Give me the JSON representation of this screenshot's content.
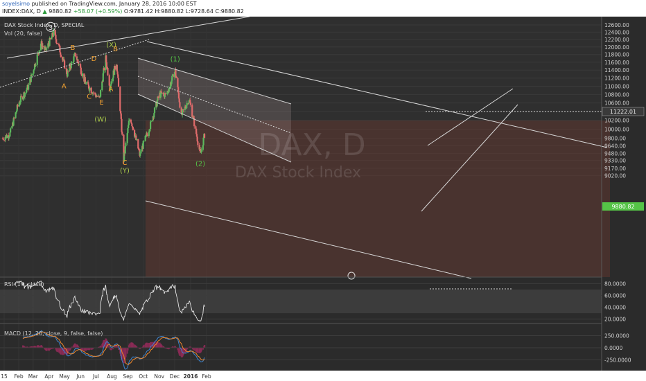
{
  "header": {
    "author": "soyelsimo",
    "published": "published on TradingView.com, January 28, 2016 10:00 EST",
    "symbol": "INDEX:DAX, D",
    "last": "9880.82",
    "change": "+58.07 (+0.59%)",
    "ohlc": "O:9781.42 H:9880.82 L:9728.64 C:9880.82"
  },
  "chart_data": {
    "type": "candlestick",
    "title": "DAX Stock Index, D, SPECIAL",
    "watermark_symbol": "DAX, D",
    "watermark_name": "DAX Stock Index",
    "volume_label": "Vol (20, false)",
    "x_tick_labels": [
      "15",
      "Feb",
      "Mar",
      "Apr",
      "May",
      "Jun",
      "Jul",
      "Aug",
      "Sep",
      "Oct",
      "Nov",
      "Dec",
      "2016",
      "Feb"
    ],
    "price_ticks": [
      12600,
      12400,
      12200,
      12000,
      11800,
      11600,
      11400,
      11200,
      11000,
      10800,
      10600,
      10400,
      10200,
      10000,
      9800,
      9640,
      9480,
      9330,
      9170,
      9020
    ],
    "price_tick_labels": [
      "12600.00",
      "12400.00",
      "12200.00",
      "12000.00",
      "11800.00",
      "11600.00",
      "11400.00",
      "11200.00",
      "11000.00",
      "10800.00",
      "10600.00",
      "10400.00",
      "10200.00",
      "10000.00",
      "9800.00",
      "9640.00",
      "9480.00",
      "9330.00",
      "9170.00",
      "9020.00"
    ],
    "price_label_current": "9880.82",
    "price_label_level": "11222.01",
    "level_line": 11222,
    "close_series": [
      {
        "date": "2015-01-01",
        "close": 9800
      },
      {
        "date": "2015-01-15",
        "close": 9900
      },
      {
        "date": "2015-02-01",
        "close": 10600
      },
      {
        "date": "2015-02-20",
        "close": 11000
      },
      {
        "date": "2015-03-10",
        "close": 11800
      },
      {
        "date": "2015-03-16",
        "close": 12100
      },
      {
        "date": "2015-03-25",
        "close": 11900
      },
      {
        "date": "2015-04-10",
        "close": 12380
      },
      {
        "date": "2015-04-20",
        "close": 12000
      },
      {
        "date": "2015-05-06",
        "close": 11300
      },
      {
        "date": "2015-05-22",
        "close": 11800
      },
      {
        "date": "2015-06-10",
        "close": 11100
      },
      {
        "date": "2015-06-29",
        "close": 10800
      },
      {
        "date": "2015-07-08",
        "close": 10700
      },
      {
        "date": "2015-07-20",
        "close": 11700
      },
      {
        "date": "2015-07-28",
        "close": 11000
      },
      {
        "date": "2015-08-10",
        "close": 11600
      },
      {
        "date": "2015-08-24",
        "close": 9350
      },
      {
        "date": "2015-09-05",
        "close": 10300
      },
      {
        "date": "2015-09-24",
        "close": 9450
      },
      {
        "date": "2015-10-15",
        "close": 10100
      },
      {
        "date": "2015-11-01",
        "close": 10800
      },
      {
        "date": "2015-11-15",
        "close": 10800
      },
      {
        "date": "2015-12-02",
        "close": 11380
      },
      {
        "date": "2015-12-14",
        "close": 10300
      },
      {
        "date": "2015-12-29",
        "close": 10700
      },
      {
        "date": "2016-01-05",
        "close": 10300
      },
      {
        "date": "2016-01-20",
        "close": 9450
      },
      {
        "date": "2016-01-28",
        "close": 9880
      }
    ],
    "annotations": [
      {
        "text": "3",
        "style": "circle",
        "color": "#e8e8e8",
        "date": "2015-04-04",
        "price": 12470
      },
      {
        "text": "A",
        "color": "#f0a030",
        "date": "2015-04-30",
        "price": 10950
      },
      {
        "text": "B",
        "color": "#f0a030",
        "date": "2015-05-17",
        "price": 11920
      },
      {
        "text": "C",
        "color": "#f0a030",
        "date": "2015-06-18",
        "price": 10700
      },
      {
        "text": "D",
        "color": "#f0a030",
        "date": "2015-06-27",
        "price": 11630
      },
      {
        "text": "E",
        "color": "#f0a030",
        "date": "2015-07-12",
        "price": 10560
      },
      {
        "text": "(W)",
        "color": "#a8c84a",
        "date": "2015-07-10",
        "price": 10170
      },
      {
        "text": "(X)",
        "color": "#a8c84a",
        "date": "2015-07-31",
        "price": 12000
      },
      {
        "text": "B",
        "color": "#f0a030",
        "date": "2015-08-08",
        "price": 11890
      },
      {
        "text": "A",
        "color": "#f0a030",
        "date": "2015-07-30",
        "price": 10880
      },
      {
        "text": "C",
        "color": "#f0a030",
        "date": "2015-08-26",
        "price": 9240
      },
      {
        "text": "(Y)",
        "color": "#a8c84a",
        "date": "2015-08-26",
        "price": 9080
      },
      {
        "text": "(1)",
        "color": "#55c447",
        "date": "2015-12-02",
        "price": 11620
      },
      {
        "text": "(2)",
        "color": "#55c447",
        "date": "2016-01-20",
        "price": 9220
      }
    ],
    "rsi": {
      "label": "RSI (14, close)",
      "ticks": [
        80,
        60,
        40,
        20
      ],
      "tick_labels": [
        "80.0000",
        "60.0000",
        "40.0000",
        "20.0000"
      ],
      "bands": [
        70,
        30
      ]
    },
    "macd": {
      "label": "MACD (12, 26, close, 9, false, false)",
      "ticks": [
        250,
        0,
        -250
      ],
      "tick_labels": [
        "250.0000",
        "0.0000",
        "-250.0000"
      ]
    }
  },
  "colors": {
    "background": "#2b2b2b",
    "up_candle": "#5db75d",
    "down_candle": "#e06b6b",
    "wave_orange": "#f0a030",
    "wave_green": "#a8c84a",
    "wave1_green": "#55c447"
  }
}
